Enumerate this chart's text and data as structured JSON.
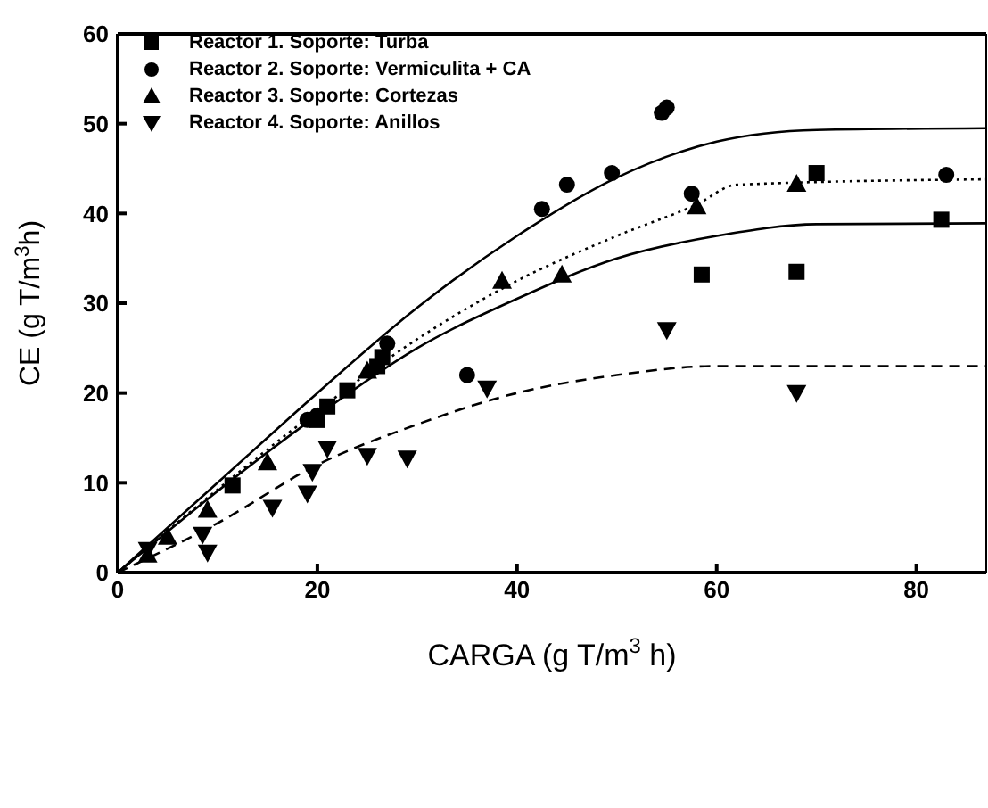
{
  "chart_data": {
    "type": "scatter",
    "xlabel": "CARGA (g T/m$^{3}$ h)",
    "ylabel": "CE (g T/m$^{3}$h)",
    "xlim": [
      0,
      87
    ],
    "xticks": [
      0,
      20,
      40,
      60,
      80
    ],
    "ylim": [
      0,
      60
    ],
    "yticks": [
      0,
      10,
      20,
      30,
      40,
      50,
      60
    ],
    "legend": "top left",
    "series": [
      {
        "name": "Reactor 1. Soporte: Turba",
        "color": "#000000",
        "marker": "square",
        "x": [
          11.5,
          20,
          21,
          23,
          26,
          26.5,
          58.5,
          68,
          70,
          82.5
        ],
        "values": [
          9.7,
          17,
          18.5,
          20.3,
          23,
          24,
          33.2,
          33.5,
          44.5,
          39.3
        ]
      },
      {
        "name": "Reactor 2. Soporte: Vermiculita + CA",
        "color": "#000000",
        "marker": "circle",
        "x": [
          19,
          20,
          27,
          35,
          42.5,
          45,
          49.5,
          54.5,
          55,
          57.5,
          83
        ],
        "values": [
          17,
          17.5,
          25.5,
          22,
          40.5,
          43.2,
          44.5,
          51.2,
          51.8,
          42.2,
          44.3
        ]
      },
      {
        "name": "Reactor 3. Soporte: Cortezas",
        "color": "#000000",
        "marker": "triangle",
        "x": [
          3,
          5,
          9,
          15,
          25,
          38.5,
          44.5,
          58,
          68
        ],
        "values": [
          2,
          4,
          7,
          12.3,
          22.5,
          32.5,
          33.2,
          40.8,
          43.3
        ]
      },
      {
        "name": "Reactor 4. Soporte: Anillos",
        "color": "#000000",
        "marker": "triangle-down",
        "x": [
          3,
          8.5,
          9,
          15.5,
          19,
          19.5,
          21,
          25,
          29,
          37,
          55,
          68
        ],
        "values": [
          2.5,
          4.2,
          2.2,
          7.2,
          8.8,
          11.2,
          13.8,
          13,
          12.7,
          20.5,
          27,
          20
        ]
      },
      {
        "type": "line",
        "color": "#000000",
        "marker": "none",
        "line_style": "solid",
        "x": [
          0,
          10,
          20,
          30,
          40,
          50,
          60,
          70,
          87
        ],
        "values": [
          0,
          10,
          20,
          29.5,
          37.5,
          44,
          48,
          49.3,
          49.5
        ]
      },
      {
        "type": "line",
        "color": "#000000",
        "marker": "none",
        "line_style": "dotted",
        "x": [
          0,
          20,
          30,
          40,
          50,
          58,
          62,
          87
        ],
        "values": [
          0,
          18,
          26,
          32.5,
          37.5,
          41,
          43.2,
          43.8
        ]
      },
      {
        "type": "line",
        "color": "#000000",
        "marker": "none",
        "line_style": "solid",
        "x": [
          0,
          20,
          30,
          40,
          50,
          60,
          70,
          87
        ],
        "values": [
          0,
          17.5,
          25,
          30.5,
          35,
          37.5,
          38.8,
          38.9
        ]
      },
      {
        "type": "line",
        "color": "#000000",
        "marker": "none",
        "line_style": "dashed",
        "x": [
          0,
          10,
          20,
          30,
          40,
          50,
          60,
          87
        ],
        "values": [
          0,
          5.5,
          12,
          16.5,
          20,
          22,
          23,
          23
        ]
      }
    ]
  }
}
